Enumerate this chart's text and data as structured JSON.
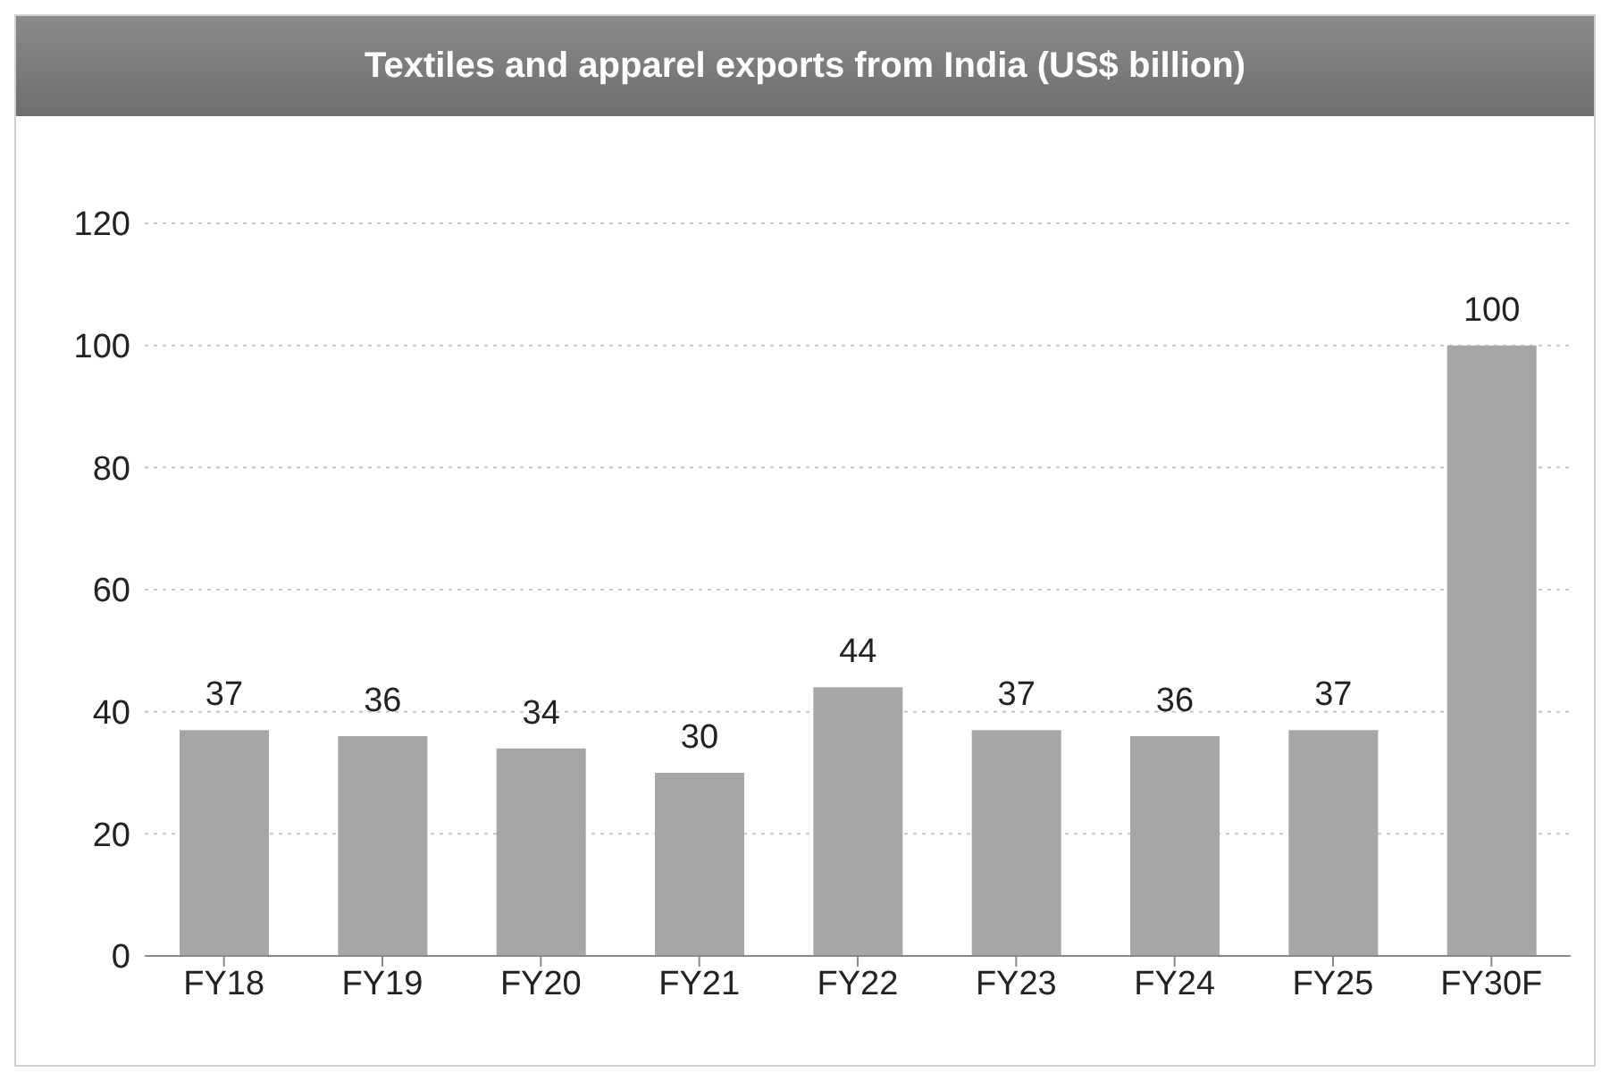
{
  "chart_data": {
    "type": "bar",
    "title": "Textiles and apparel exports from India (US$ billion)",
    "categories": [
      "FY18",
      "FY19",
      "FY20",
      "FY21",
      "FY22",
      "FY23",
      "FY24",
      "FY25",
      "FY30F"
    ],
    "values": [
      37,
      36,
      34,
      30,
      44,
      37,
      36,
      37,
      100
    ],
    "color": "#a6a6a6",
    "ylim": [
      0,
      120
    ],
    "yticks": [
      0,
      20,
      40,
      60,
      80,
      100,
      120
    ],
    "grid": "y",
    "data_labels": true
  }
}
